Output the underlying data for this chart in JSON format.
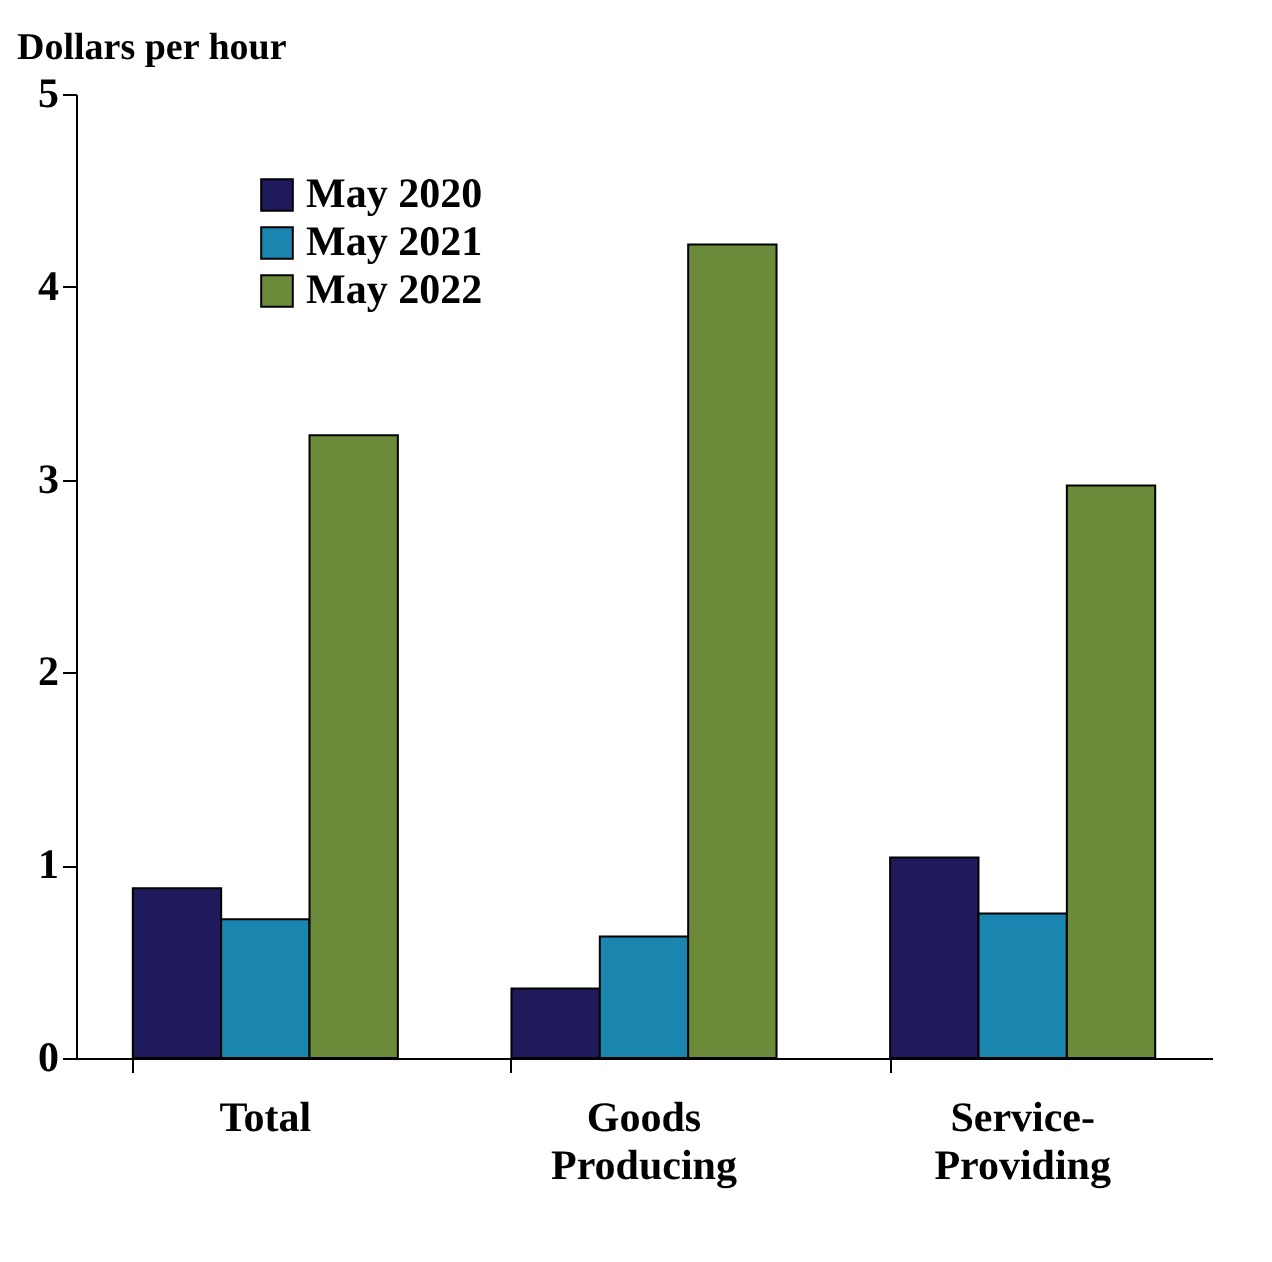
{
  "chart_data": {
    "type": "bar",
    "ylabel": "Dollars per hour",
    "categories": [
      "Total",
      "Goods Producing",
      "Service-Providing"
    ],
    "series": [
      {
        "name": "May 2020",
        "color": "#1f1a5c",
        "values": [
          0.88,
          0.36,
          1.04
        ]
      },
      {
        "name": "May 2021",
        "color": "#1a86b0",
        "values": [
          0.72,
          0.63,
          0.75
        ]
      },
      {
        "name": "May 2022",
        "color": "#6b8a3a",
        "values": [
          3.23,
          4.22,
          2.97
        ]
      }
    ],
    "ylim": [
      0,
      5
    ],
    "yticks": [
      0,
      1,
      2,
      3,
      4,
      5
    ],
    "grid": false,
    "legend": "top left"
  }
}
